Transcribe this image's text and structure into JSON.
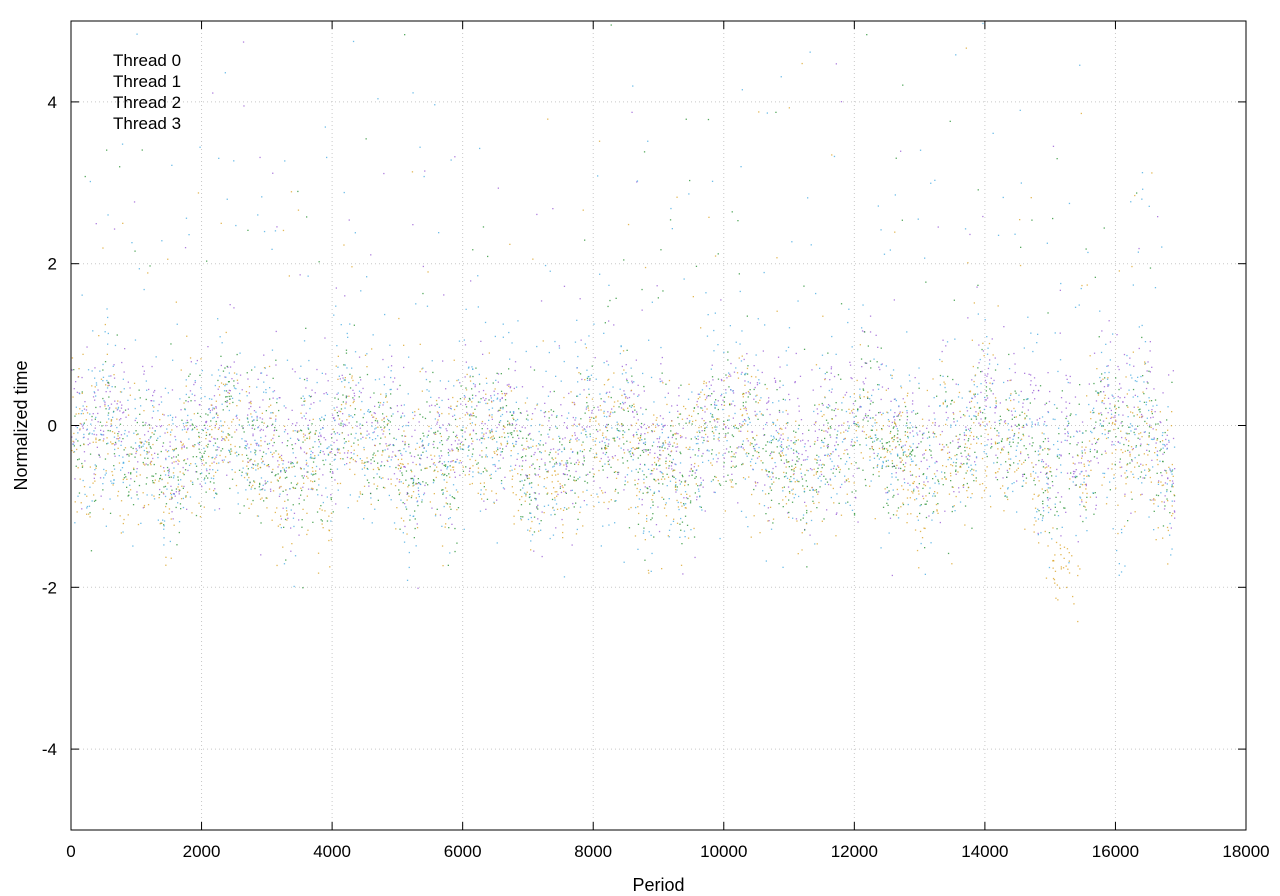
{
  "chart_data": {
    "type": "scatter",
    "title": "",
    "xlabel": "Period",
    "ylabel": "Normalized time",
    "xlim": [
      0,
      18000
    ],
    "ylim": [
      -5,
      5
    ],
    "xticks": [
      0,
      2000,
      4000,
      6000,
      8000,
      10000,
      12000,
      14000,
      16000,
      18000
    ],
    "yticks": [
      -4,
      -2,
      0,
      2,
      4
    ],
    "xtick_labels": [
      "0",
      "2000",
      "4000",
      "6000",
      "8000",
      "10000",
      "12000",
      "14000",
      "16000",
      "18000"
    ],
    "ytick_labels": [
      "-4",
      "-2",
      "0",
      "2",
      "4"
    ],
    "grid": true,
    "legend_position": "top-left",
    "x_range_of_points": [
      0,
      16900
    ],
    "series": [
      {
        "name": "Thread 0",
        "color": "#9455d3",
        "center": -0.1,
        "spread": 0.45
      },
      {
        "name": "Thread 1",
        "color": "#1e8c2a",
        "center": -0.3,
        "spread": 0.4
      },
      {
        "name": "Thread 2",
        "color": "#3fa7e0",
        "center": -0.2,
        "spread": 0.55
      },
      {
        "name": "Thread 3",
        "color": "#d9a020",
        "center": -0.35,
        "spread": 0.45
      }
    ],
    "notable_features": [
      {
        "series": "Thread 3",
        "x_range": [
          15000,
          15450
        ],
        "y_approx": -1.8
      },
      {
        "series": "Thread 3",
        "x_range": [
          3750,
          4000
        ],
        "y_approx": -1.3
      },
      {
        "series": "Thread 2",
        "x_range": [
          16000,
          16150
        ],
        "y_approx": -1.5
      }
    ]
  }
}
